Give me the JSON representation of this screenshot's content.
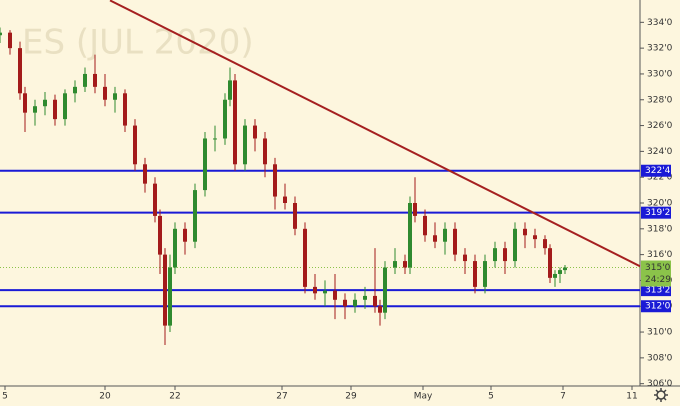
{
  "chart_data": {
    "type": "candlestick",
    "watermark": "ES (JUL 2020)",
    "xlim": [
      0,
      128
    ],
    "xticks": [
      {
        "value": 1,
        "label": "5"
      },
      {
        "value": 21,
        "label": "20"
      },
      {
        "value": 35,
        "label": "22"
      },
      {
        "value": 56.4,
        "label": "27"
      },
      {
        "value": 70.2,
        "label": "29"
      },
      {
        "value": 84.6,
        "label": "May"
      },
      {
        "value": 98.2,
        "label": "5"
      },
      {
        "value": 112.6,
        "label": "7"
      },
      {
        "value": 126.4,
        "label": "11"
      }
    ],
    "ylim": [
      304.27,
      335.73
    ],
    "yticks": [
      {
        "value": 306,
        "label": "306'0"
      },
      {
        "value": 308,
        "label": "308'0"
      },
      {
        "value": 310,
        "label": "310'0"
      },
      {
        "value": 312,
        "label": "312'0"
      },
      {
        "value": 314,
        "label": "314'0"
      },
      {
        "value": 316,
        "label": "316'0"
      },
      {
        "value": 318,
        "label": "318'0"
      },
      {
        "value": 320,
        "label": "320'0"
      },
      {
        "value": 322,
        "label": "322'0"
      },
      {
        "value": 324,
        "label": "324'0"
      },
      {
        "value": 326,
        "label": "326'0"
      },
      {
        "value": 328,
        "label": "328'0"
      },
      {
        "value": 330,
        "label": "330'0"
      },
      {
        "value": 332,
        "label": "332'0"
      },
      {
        "value": 334,
        "label": "334'0"
      }
    ],
    "up_color": "#2f8a2f",
    "down_color": "#a31b1b",
    "candles": {
      "x": [
        0,
        2,
        4,
        5,
        7,
        9,
        11,
        13,
        15,
        17,
        19,
        21,
        23,
        25,
        27,
        29,
        31,
        32,
        33,
        34,
        35,
        37,
        39,
        41,
        43,
        45,
        46,
        47,
        49,
        51,
        53,
        55,
        57,
        59,
        61,
        63,
        65,
        67,
        69,
        71,
        73,
        75,
        76,
        77,
        79,
        81,
        82,
        83,
        85,
        87,
        89,
        91,
        93,
        95,
        97,
        99,
        101,
        103,
        105,
        107,
        109,
        110,
        111,
        112,
        113
      ],
      "open": [
        333,
        333.2,
        332,
        328.5,
        327,
        327.5,
        328,
        326.5,
        328.5,
        329,
        330,
        329,
        328,
        328.5,
        326,
        323,
        321.5,
        319,
        316,
        310.5,
        315,
        318,
        317,
        321,
        325,
        325,
        328,
        329.5,
        323,
        326,
        325,
        323,
        320.5,
        320,
        318,
        313.5,
        313,
        313.2,
        312.5,
        312,
        312.5,
        312.8,
        312,
        311.5,
        315,
        315.5,
        315,
        320,
        319,
        317.5,
        317,
        318,
        316,
        315.5,
        313.5,
        315.5,
        316.5,
        315.5,
        318,
        317.5,
        317.2,
        316.5,
        314.2,
        314.5,
        314.8
      ],
      "high": [
        333.6,
        333.4,
        332.5,
        329,
        328,
        328.6,
        328.4,
        328.8,
        329.5,
        330.5,
        331.5,
        330,
        329,
        328.8,
        326.5,
        323.5,
        322,
        319.5,
        316.5,
        316,
        318.5,
        318.5,
        321.5,
        325.5,
        326,
        328.5,
        330.5,
        330,
        326.5,
        326.5,
        325.5,
        323.5,
        321.5,
        320.5,
        318.5,
        314.5,
        314,
        314.5,
        313,
        313,
        313.5,
        316.5,
        312.5,
        315.5,
        316.5,
        316,
        320.5,
        322,
        319.5,
        318.5,
        318.5,
        318.5,
        316.5,
        316,
        316,
        317,
        317,
        318.5,
        318.5,
        318,
        317.5,
        316.8,
        314.8,
        315,
        315.2
      ],
      "low": [
        332.4,
        331.5,
        328,
        325.5,
        326,
        326.8,
        326,
        326,
        327.8,
        328.6,
        328.5,
        327.5,
        327,
        325.5,
        322.5,
        320.8,
        318.5,
        314.5,
        309,
        310,
        314.5,
        316,
        316.5,
        320.5,
        324,
        324.5,
        327.5,
        322.5,
        322.5,
        324,
        322,
        319.5,
        319.5,
        317.5,
        313,
        312.5,
        312,
        311,
        311,
        311.5,
        311.8,
        311.5,
        310.5,
        311,
        314.5,
        314.5,
        314.5,
        318.5,
        317,
        316.5,
        316,
        315.5,
        314.5,
        313,
        313,
        315,
        314.5,
        315,
        316.5,
        316.5,
        316,
        313.8,
        313.5,
        313.8,
        314.5
      ],
      "close": [
        333.2,
        332,
        328.5,
        327,
        327.5,
        328,
        326.5,
        328.5,
        329,
        330,
        329,
        328,
        328.5,
        326,
        323,
        321.5,
        319,
        316,
        310.5,
        315,
        318,
        317,
        321,
        325,
        325,
        328,
        329.5,
        323,
        326,
        325,
        323,
        320.5,
        320,
        318,
        313.5,
        313,
        313.2,
        312.5,
        312,
        312.5,
        312.8,
        312,
        311.5,
        315,
        315.5,
        315,
        320,
        319,
        317.5,
        317,
        318,
        316,
        315.5,
        313.5,
        315.5,
        316.5,
        315.5,
        318,
        317.5,
        317.2,
        316.5,
        314.2,
        314.5,
        314.8,
        315
      ]
    },
    "trendline": {
      "x": [
        22,
        128
      ],
      "y": [
        335.7,
        315.1
      ],
      "color": "#a52020"
    },
    "levels": [
      {
        "value": 322.5,
        "label": "322'4"
      },
      {
        "value": 319.25,
        "label": "319'2"
      },
      {
        "value": 313.25,
        "label": "313'2"
      },
      {
        "value": 312,
        "label": "312'0"
      }
    ],
    "level_color": "#1a1ad6",
    "last_price": {
      "value": 315,
      "label": "315'0",
      "timer": "24:29",
      "color": "#8bc34a"
    }
  }
}
